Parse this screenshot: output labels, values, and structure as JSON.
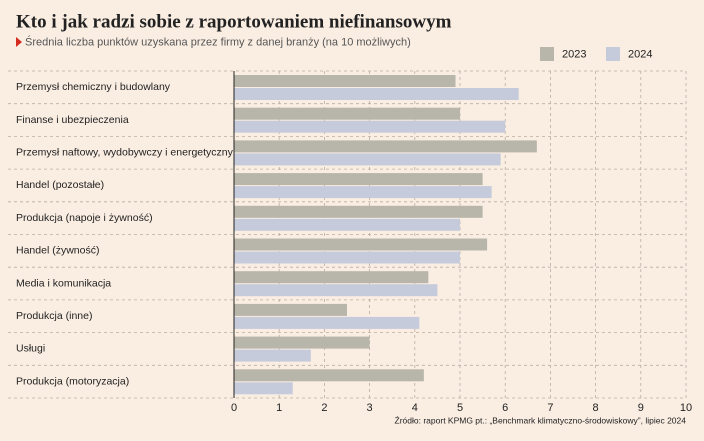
{
  "chart_data": {
    "type": "bar",
    "orientation": "horizontal",
    "title": "Kto i jak radzi sobie z raportowaniem niefinansowym",
    "subtitle": "Średnia liczba punktów uzyskana przez firmy z danej branży (na 10 możliwych)",
    "source": "Źródło: raport KPMG pt.: „Benchmark klimatyczno-środowiskowy”, lipiec 2024",
    "categories": [
      "Przemysł chemiczny i budowlany",
      "Finanse i ubezpieczenia",
      "Przemysł naftowy, wydobywczy i energetyczny",
      "Handel (pozostałe)",
      "Produkcja (napoje i żywność)",
      "Handel (żywność)",
      "Media i komunikacja",
      "Produkcja (inne)",
      "Usługi",
      "Produkcja (motoryzacja)"
    ],
    "series": [
      {
        "name": "2023",
        "color": "#b8b5aa",
        "values": [
          4.9,
          5.0,
          6.7,
          5.5,
          5.5,
          5.6,
          4.3,
          2.5,
          3.0,
          4.2
        ]
      },
      {
        "name": "2024",
        "color": "#c6cbdc",
        "values": [
          6.3,
          6.0,
          5.9,
          5.7,
          5.0,
          5.0,
          4.5,
          4.1,
          1.7,
          1.3
        ]
      }
    ],
    "xlim": [
      0,
      10
    ],
    "xticks": [
      0,
      1,
      2,
      3,
      4,
      5,
      6,
      7,
      8,
      9,
      10
    ],
    "grid": true,
    "legend": "top-right"
  }
}
